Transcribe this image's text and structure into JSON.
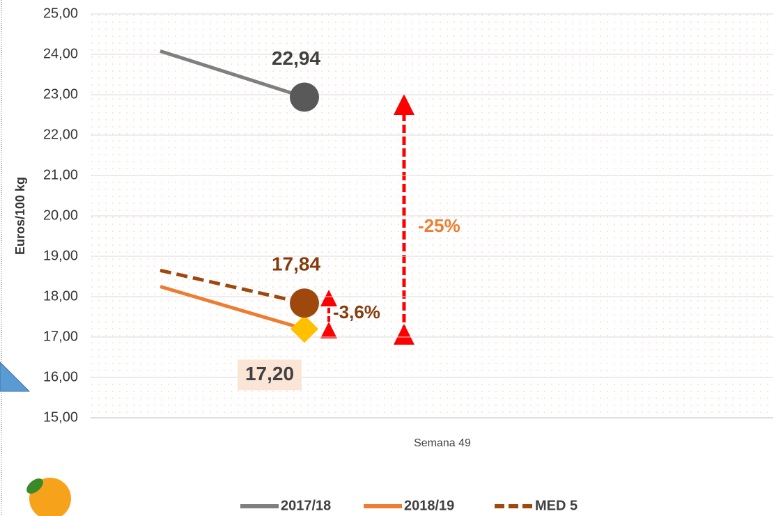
{
  "chart_data": {
    "type": "line",
    "ylabel": "Euros/100 kg",
    "xlabel": "Semana 49",
    "categories": [
      null,
      null
    ],
    "series": [
      {
        "name": "2017/18",
        "color": "#7f7f7f",
        "marker": "circle",
        "marker_color": "#595959",
        "values": [
          24.08,
          22.94
        ],
        "value_labels": [
          null,
          "22,94"
        ]
      },
      {
        "name": "2018/19",
        "color": "#ed7d31",
        "marker": "diamond",
        "marker_color": "#ffc000",
        "values": [
          18.25,
          17.2
        ],
        "value_labels": [
          null,
          "17,20"
        ]
      },
      {
        "name": "MED 5",
        "color": "#9e480e",
        "dashed": true,
        "marker": "circle",
        "marker_color": "#9e480e",
        "values": [
          18.65,
          17.84
        ],
        "value_labels": [
          null,
          "17,84"
        ]
      }
    ],
    "annotations": [
      "-25%",
      "-3,6%"
    ],
    "ylim": [
      15,
      25
    ],
    "yticks": [
      {
        "value": 15,
        "label": "15,00"
      },
      {
        "value": 16,
        "label": "16,00"
      },
      {
        "value": 17,
        "label": "17,00"
      },
      {
        "value": 18,
        "label": "18,00"
      },
      {
        "value": 19,
        "label": "19,00"
      },
      {
        "value": 20,
        "label": "20,00"
      },
      {
        "value": 21,
        "label": "21,00"
      },
      {
        "value": 22,
        "label": "22,00"
      },
      {
        "value": 23,
        "label": "23,00"
      },
      {
        "value": 24,
        "label": "24,00"
      },
      {
        "value": 25,
        "label": "25,00"
      }
    ],
    "grid": true
  }
}
